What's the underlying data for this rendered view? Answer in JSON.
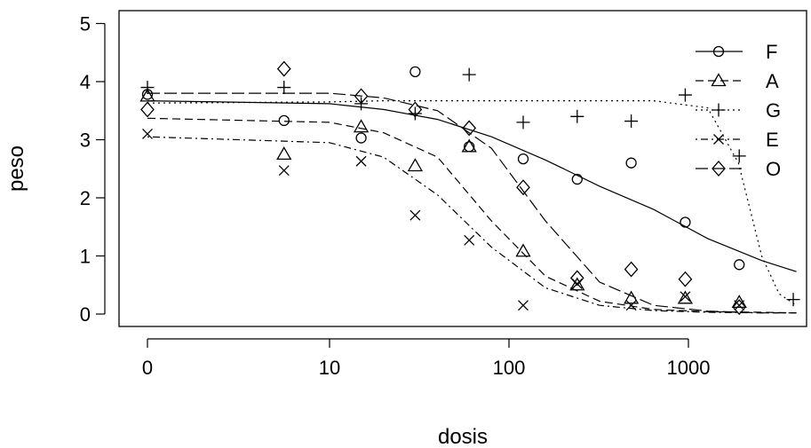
{
  "chart_data": {
    "type": "scatter",
    "xlabel": "dosis",
    "ylabel": "peso",
    "x_scale": "log-like with zero",
    "xlim": [
      0,
      4000
    ],
    "ylim": [
      0,
      5
    ],
    "x_ticks": [
      {
        "value": 0,
        "label": "0"
      },
      {
        "value": 10,
        "label": "10"
      },
      {
        "value": 100,
        "label": "100"
      },
      {
        "value": 1000,
        "label": "1000"
      }
    ],
    "y_ticks": [
      {
        "value": 0,
        "label": "0"
      },
      {
        "value": 1,
        "label": "1"
      },
      {
        "value": 2,
        "label": "2"
      },
      {
        "value": 3,
        "label": "3"
      },
      {
        "value": 4,
        "label": "4"
      },
      {
        "value": 5,
        "label": "5"
      }
    ],
    "grid": false,
    "legend_position": "right",
    "series": [
      {
        "name": "F",
        "marker": "circle",
        "line_style": "solid",
        "points": [
          [
            0,
            3.78
          ],
          [
            7.5,
            3.33
          ],
          [
            15,
            3.03
          ],
          [
            30,
            4.17
          ],
          [
            60,
            2.88
          ],
          [
            120,
            2.67
          ],
          [
            240,
            2.32
          ],
          [
            480,
            2.6
          ],
          [
            960,
            1.58
          ],
          [
            1920,
            0.85
          ]
        ],
        "curve": [
          [
            0,
            3.67
          ],
          [
            10,
            3.62
          ],
          [
            20,
            3.52
          ],
          [
            40,
            3.35
          ],
          [
            80,
            3.05
          ],
          [
            160,
            2.65
          ],
          [
            320,
            2.2
          ],
          [
            640,
            1.8
          ],
          [
            1280,
            1.3
          ],
          [
            2560,
            0.92
          ],
          [
            4000,
            0.73
          ]
        ]
      },
      {
        "name": "A",
        "marker": "triangle",
        "line_style": "dashed",
        "points": [
          [
            0,
            3.75
          ],
          [
            7.5,
            2.75
          ],
          [
            15,
            3.22
          ],
          [
            30,
            2.55
          ],
          [
            60,
            2.88
          ],
          [
            120,
            1.08
          ],
          [
            240,
            0.5
          ],
          [
            480,
            0.27
          ],
          [
            960,
            0.27
          ],
          [
            1920,
            0.2
          ]
        ],
        "curve": [
          [
            0,
            3.37
          ],
          [
            10,
            3.3
          ],
          [
            20,
            3.12
          ],
          [
            40,
            2.7
          ],
          [
            80,
            1.6
          ],
          [
            160,
            0.65
          ],
          [
            320,
            0.22
          ],
          [
            640,
            0.08
          ],
          [
            1280,
            0.04
          ],
          [
            2560,
            0.03
          ],
          [
            4000,
            0.02
          ]
        ]
      },
      {
        "name": "G",
        "marker": "plus",
        "line_style": "dotted",
        "points": [
          [
            0,
            3.9
          ],
          [
            7.5,
            3.9
          ],
          [
            15,
            3.62
          ],
          [
            30,
            3.45
          ],
          [
            60,
            4.12
          ],
          [
            120,
            3.3
          ],
          [
            240,
            3.4
          ],
          [
            480,
            3.32
          ],
          [
            960,
            3.77
          ],
          [
            1920,
            2.72
          ],
          [
            3840,
            0.25
          ]
        ],
        "curve": [
          [
            0,
            3.63
          ],
          [
            10,
            3.65
          ],
          [
            20,
            3.67
          ],
          [
            40,
            3.67
          ],
          [
            80,
            3.67
          ],
          [
            160,
            3.67
          ],
          [
            320,
            3.67
          ],
          [
            640,
            3.67
          ],
          [
            1280,
            3.55
          ],
          [
            1900,
            2.6
          ],
          [
            2560,
            1.0
          ],
          [
            3200,
            0.35
          ],
          [
            4000,
            0.15
          ]
        ]
      },
      {
        "name": "E",
        "marker": "cross",
        "line_style": "dotdash",
        "points": [
          [
            0,
            3.1
          ],
          [
            7.5,
            2.47
          ],
          [
            15,
            2.63
          ],
          [
            30,
            1.7
          ],
          [
            60,
            1.27
          ],
          [
            120,
            0.15
          ],
          [
            240,
            0.52
          ],
          [
            480,
            0.15
          ],
          [
            960,
            0.3
          ],
          [
            1920,
            0.15
          ]
        ],
        "curve": [
          [
            0,
            3.05
          ],
          [
            10,
            2.95
          ],
          [
            20,
            2.7
          ],
          [
            40,
            2.05
          ],
          [
            80,
            1.15
          ],
          [
            160,
            0.45
          ],
          [
            320,
            0.15
          ],
          [
            640,
            0.06
          ],
          [
            1280,
            0.03
          ],
          [
            2560,
            0.02
          ],
          [
            4000,
            0.02
          ]
        ]
      },
      {
        "name": "O",
        "marker": "diamond",
        "line_style": "longdash",
        "points": [
          [
            0,
            3.52
          ],
          [
            7.5,
            4.22
          ],
          [
            15,
            3.75
          ],
          [
            30,
            3.52
          ],
          [
            60,
            3.2
          ],
          [
            120,
            2.18
          ],
          [
            240,
            0.62
          ],
          [
            480,
            0.77
          ],
          [
            960,
            0.6
          ],
          [
            1920,
            0.12
          ]
        ],
        "curve": [
          [
            0,
            3.8
          ],
          [
            10,
            3.8
          ],
          [
            20,
            3.72
          ],
          [
            40,
            3.5
          ],
          [
            80,
            2.85
          ],
          [
            160,
            1.6
          ],
          [
            320,
            0.55
          ],
          [
            640,
            0.15
          ],
          [
            1280,
            0.05
          ],
          [
            2560,
            0.02
          ],
          [
            4000,
            0.02
          ]
        ]
      }
    ]
  }
}
